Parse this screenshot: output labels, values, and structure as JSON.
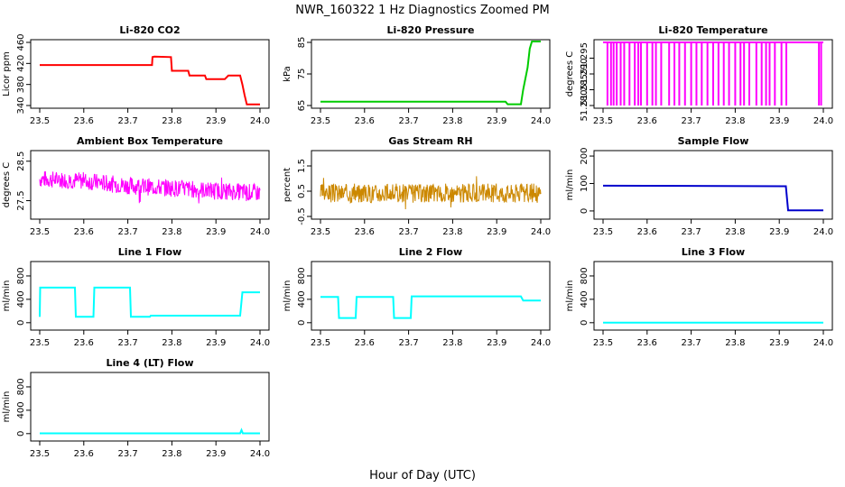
{
  "title": "NWR_160322  1 Hz Diagnostics Zoomed PM",
  "xlabel": "Hour of Day (UTC)",
  "chart_data": [
    {
      "id": "co2",
      "type": "line",
      "title": "Li-820 CO2",
      "ylabel": "Licor ppm",
      "color": "#ff0000",
      "xlim": [
        23.5,
        24.0
      ],
      "ylim": [
        340,
        460
      ],
      "yticks": [
        "340",
        "380",
        "420",
        "460"
      ],
      "xticks": [
        "23.5",
        "23.6",
        "23.7",
        "23.8",
        "23.9",
        "24.0"
      ],
      "x": [
        23.5,
        23.755,
        23.756,
        23.76,
        23.798,
        23.8,
        23.837,
        23.84,
        23.875,
        23.878,
        23.92,
        23.928,
        23.955,
        23.96,
        23.965,
        23.97,
        24.0
      ],
      "y": [
        417,
        417,
        432,
        433,
        432,
        406,
        406,
        397,
        397,
        390,
        390,
        397,
        397,
        380,
        360,
        342,
        342
      ]
    },
    {
      "id": "pressure",
      "type": "line",
      "title": "Li-820 Pressure",
      "ylabel": "kPa",
      "color": "#00cc00",
      "xlim": [
        23.5,
        24.0
      ],
      "ylim": [
        65,
        85
      ],
      "yticks": [
        "65",
        "75",
        "85"
      ],
      "xticks": [
        "23.5",
        "23.6",
        "23.7",
        "23.8",
        "23.9",
        "24.0"
      ],
      "x": [
        23.5,
        23.92,
        23.925,
        23.955,
        23.96,
        23.97,
        23.975,
        23.98,
        24.0
      ],
      "y": [
        66.2,
        66.2,
        65.4,
        65.4,
        70,
        77,
        83,
        85.3,
        85.3
      ]
    },
    {
      "id": "licor_temp",
      "type": "spikes",
      "title": "Li-820 Temperature",
      "ylabel": "degrees C",
      "color": "#ff00ff",
      "xlim": [
        23.5,
        24.0
      ],
      "ylim": [
        51.28,
        51.3
      ],
      "yticks": [
        "51.280",
        "51.285",
        "51.290",
        "51.295"
      ],
      "xticks": [
        "23.5",
        "23.6",
        "23.7",
        "23.8",
        "23.9",
        "24.0"
      ],
      "base": 51.3,
      "low": 51.28,
      "x": [
        23.51,
        23.518,
        23.524,
        23.531,
        23.54,
        23.548,
        23.56,
        23.572,
        23.58,
        23.586,
        23.6,
        23.612,
        23.62,
        23.632,
        23.65,
        23.662,
        23.673,
        23.686,
        23.7,
        23.712,
        23.724,
        23.737,
        23.75,
        23.762,
        23.774,
        23.786,
        23.8,
        23.812,
        23.82,
        23.832,
        23.848,
        23.86,
        23.87,
        23.878,
        23.89,
        23.905,
        23.916,
        23.99,
        23.995
      ]
    },
    {
      "id": "box_temp",
      "type": "noise",
      "title": "Ambient Box Temperature",
      "ylabel": "degrees C",
      "color": "#ff00ff",
      "xlim": [
        23.5,
        24.0
      ],
      "ylim": [
        27.1,
        28.7
      ],
      "yticks": [
        "27.5",
        "28.5"
      ],
      "xticks": [
        "23.5",
        "23.6",
        "23.7",
        "23.8",
        "23.9",
        "24.0"
      ],
      "x": [
        23.5,
        23.6,
        23.7,
        23.8,
        23.9,
        24.0
      ],
      "center": [
        28.05,
        28.0,
        27.88,
        27.82,
        27.75,
        27.7
      ],
      "amplitude": 0.22,
      "seed": 7
    },
    {
      "id": "rh",
      "type": "noise",
      "title": "Gas Stream RH",
      "ylabel": "percent",
      "color": "#cc8800",
      "xlim": [
        23.5,
        24.0
      ],
      "ylim": [
        -0.5,
        2.0
      ],
      "yticks": [
        "-0.5",
        "0.5",
        "1.5"
      ],
      "xticks": [
        "23.5",
        "23.6",
        "23.7",
        "23.8",
        "23.9",
        "24.0"
      ],
      "x": [
        23.5,
        23.75,
        24.0
      ],
      "center": [
        0.42,
        0.42,
        0.42
      ],
      "amplitude": 0.38,
      "seed": 3
    },
    {
      "id": "sample_flow",
      "type": "line",
      "title": "Sample Flow",
      "ylabel": "ml/min",
      "color": "#0000cc",
      "xlim": [
        23.5,
        24.0
      ],
      "ylim": [
        -20,
        210
      ],
      "yticks": [
        "0",
        "100",
        "200"
      ],
      "xticks": [
        "23.5",
        "23.6",
        "23.7",
        "23.8",
        "23.9",
        "24.0"
      ],
      "x": [
        23.5,
        23.91,
        23.915,
        23.92,
        24.0
      ],
      "y": [
        92,
        90,
        90,
        2,
        2
      ]
    },
    {
      "id": "line1",
      "type": "line",
      "title": "Line 1 Flow",
      "ylabel": "ml/min",
      "color": "#00ffff",
      "xlim": [
        23.5,
        24.0
      ],
      "ylim": [
        -80,
        1000
      ],
      "yticks": [
        "0",
        "400",
        "800"
      ],
      "xticks": [
        "23.5",
        "23.6",
        "23.7",
        "23.8",
        "23.9",
        "24.0"
      ],
      "x": [
        23.5,
        23.501,
        23.58,
        23.582,
        23.622,
        23.624,
        23.705,
        23.707,
        23.75,
        23.752,
        23.955,
        23.96,
        24.0
      ],
      "y": [
        100,
        600,
        600,
        100,
        100,
        600,
        600,
        100,
        100,
        120,
        120,
        520,
        520
      ]
    },
    {
      "id": "line2",
      "type": "line",
      "title": "Line 2 Flow",
      "ylabel": "ml/min",
      "color": "#00ffff",
      "xlim": [
        23.5,
        24.0
      ],
      "ylim": [
        -80,
        1000
      ],
      "yticks": [
        "0",
        "400",
        "800"
      ],
      "xticks": [
        "23.5",
        "23.6",
        "23.7",
        "23.8",
        "23.9",
        "24.0"
      ],
      "x": [
        23.5,
        23.54,
        23.542,
        23.58,
        23.582,
        23.665,
        23.667,
        23.705,
        23.707,
        23.955,
        23.96,
        24.0
      ],
      "y": [
        440,
        440,
        80,
        80,
        440,
        440,
        80,
        80,
        450,
        450,
        380,
        380
      ]
    },
    {
      "id": "line3",
      "type": "line",
      "title": "Line 3 Flow",
      "ylabel": "ml/min",
      "color": "#00ffff",
      "xlim": [
        23.5,
        24.0
      ],
      "ylim": [
        -80,
        1000
      ],
      "yticks": [
        "0",
        "400",
        "800"
      ],
      "xticks": [
        "23.5",
        "23.6",
        "23.7",
        "23.8",
        "23.9",
        "24.0"
      ],
      "x": [
        23.5,
        24.0
      ],
      "y": [
        0,
        0
      ]
    },
    {
      "id": "line4",
      "type": "line",
      "title": "Line 4 (LT) Flow",
      "ylabel": "ml/min",
      "color": "#00ffff",
      "xlim": [
        23.5,
        24.0
      ],
      "ylim": [
        -80,
        1000
      ],
      "yticks": [
        "0",
        "400",
        "800"
      ],
      "xticks": [
        "23.5",
        "23.6",
        "23.7",
        "23.8",
        "23.9",
        "24.0"
      ],
      "x": [
        23.5,
        23.955,
        23.958,
        23.961,
        24.0
      ],
      "y": [
        5,
        5,
        60,
        5,
        5
      ]
    }
  ]
}
